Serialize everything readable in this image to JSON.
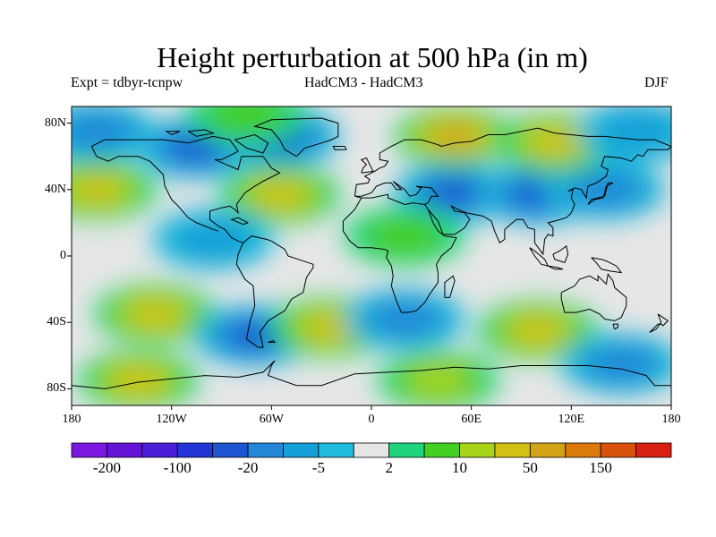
{
  "header": {
    "title": "Height perturbation at 500 hPa (in m)",
    "experiment": "Expt = tdbyr-tcnpw",
    "models": "HadCM3 - HadCM3",
    "season": "DJF"
  },
  "map": {
    "projection": "cylindrical equidistant",
    "lon_range": [
      -180,
      180
    ],
    "lat_range": [
      -90,
      90
    ],
    "y_ticks": [
      {
        "lat": 80,
        "label": "80N"
      },
      {
        "lat": 40,
        "label": "40N"
      },
      {
        "lat": 0,
        "label": "0"
      },
      {
        "lat": -40,
        "label": "40S"
      },
      {
        "lat": -80,
        "label": "80S"
      }
    ],
    "x_ticks": [
      {
        "lon": -180,
        "label": "180"
      },
      {
        "lon": -120,
        "label": "120W"
      },
      {
        "lon": -60,
        "label": "60W"
      },
      {
        "lon": 0,
        "label": "0"
      },
      {
        "lon": 60,
        "label": "60E"
      },
      {
        "lon": 120,
        "label": "120E"
      },
      {
        "lon": 180,
        "label": "180"
      }
    ]
  },
  "colorbar": {
    "colors": [
      "#7a17e0",
      "#6414d6",
      "#4b1fd8",
      "#2335d6",
      "#1d55d2",
      "#2487d8",
      "#159fd8",
      "#1fbadc",
      "#e6e6e6",
      "#1ed57e",
      "#44cf24",
      "#a7d318",
      "#d1c114",
      "#d3a316",
      "#d97a0a",
      "#d9520c",
      "#d82010"
    ],
    "labels": [
      {
        "index": 1,
        "text": "-200"
      },
      {
        "index": 3,
        "text": "-100"
      },
      {
        "index": 5,
        "text": "-20"
      },
      {
        "index": 7,
        "text": "-5"
      },
      {
        "index": 9,
        "text": "2"
      },
      {
        "index": 11,
        "text": "10"
      },
      {
        "index": 13,
        "text": "50"
      },
      {
        "index": 15,
        "text": "150"
      }
    ]
  },
  "anomaly_field": [
    {
      "lon": -105,
      "lat": 65,
      "value": -40
    },
    {
      "lon": -55,
      "lat": 72,
      "value": -20
    },
    {
      "lon": -165,
      "lat": 75,
      "value": -12
    },
    {
      "lon": -165,
      "lat": 40,
      "value": 45
    },
    {
      "lon": -55,
      "lat": 37,
      "value": 35
    },
    {
      "lon": -75,
      "lat": 85,
      "value": 8
    },
    {
      "lon": 50,
      "lat": 38,
      "value": -35
    },
    {
      "lon": 100,
      "lat": 37,
      "value": -30
    },
    {
      "lon": 140,
      "lat": 40,
      "value": -12
    },
    {
      "lon": 50,
      "lat": 72,
      "value": 50
    },
    {
      "lon": 110,
      "lat": 68,
      "value": 30
    },
    {
      "lon": 160,
      "lat": 75,
      "value": -8
    },
    {
      "lon": -130,
      "lat": -35,
      "value": 45
    },
    {
      "lon": -70,
      "lat": -48,
      "value": -30
    },
    {
      "lon": -25,
      "lat": -43,
      "value": 25
    },
    {
      "lon": 20,
      "lat": -38,
      "value": -15
    },
    {
      "lon": 100,
      "lat": -45,
      "value": 35
    },
    {
      "lon": 150,
      "lat": -65,
      "value": -12
    },
    {
      "lon": -140,
      "lat": -75,
      "value": 25
    },
    {
      "lon": 40,
      "lat": -75,
      "value": 10
    },
    {
      "lon": -95,
      "lat": 10,
      "value": -6
    },
    {
      "lon": 20,
      "lat": 12,
      "value": 8
    }
  ]
}
